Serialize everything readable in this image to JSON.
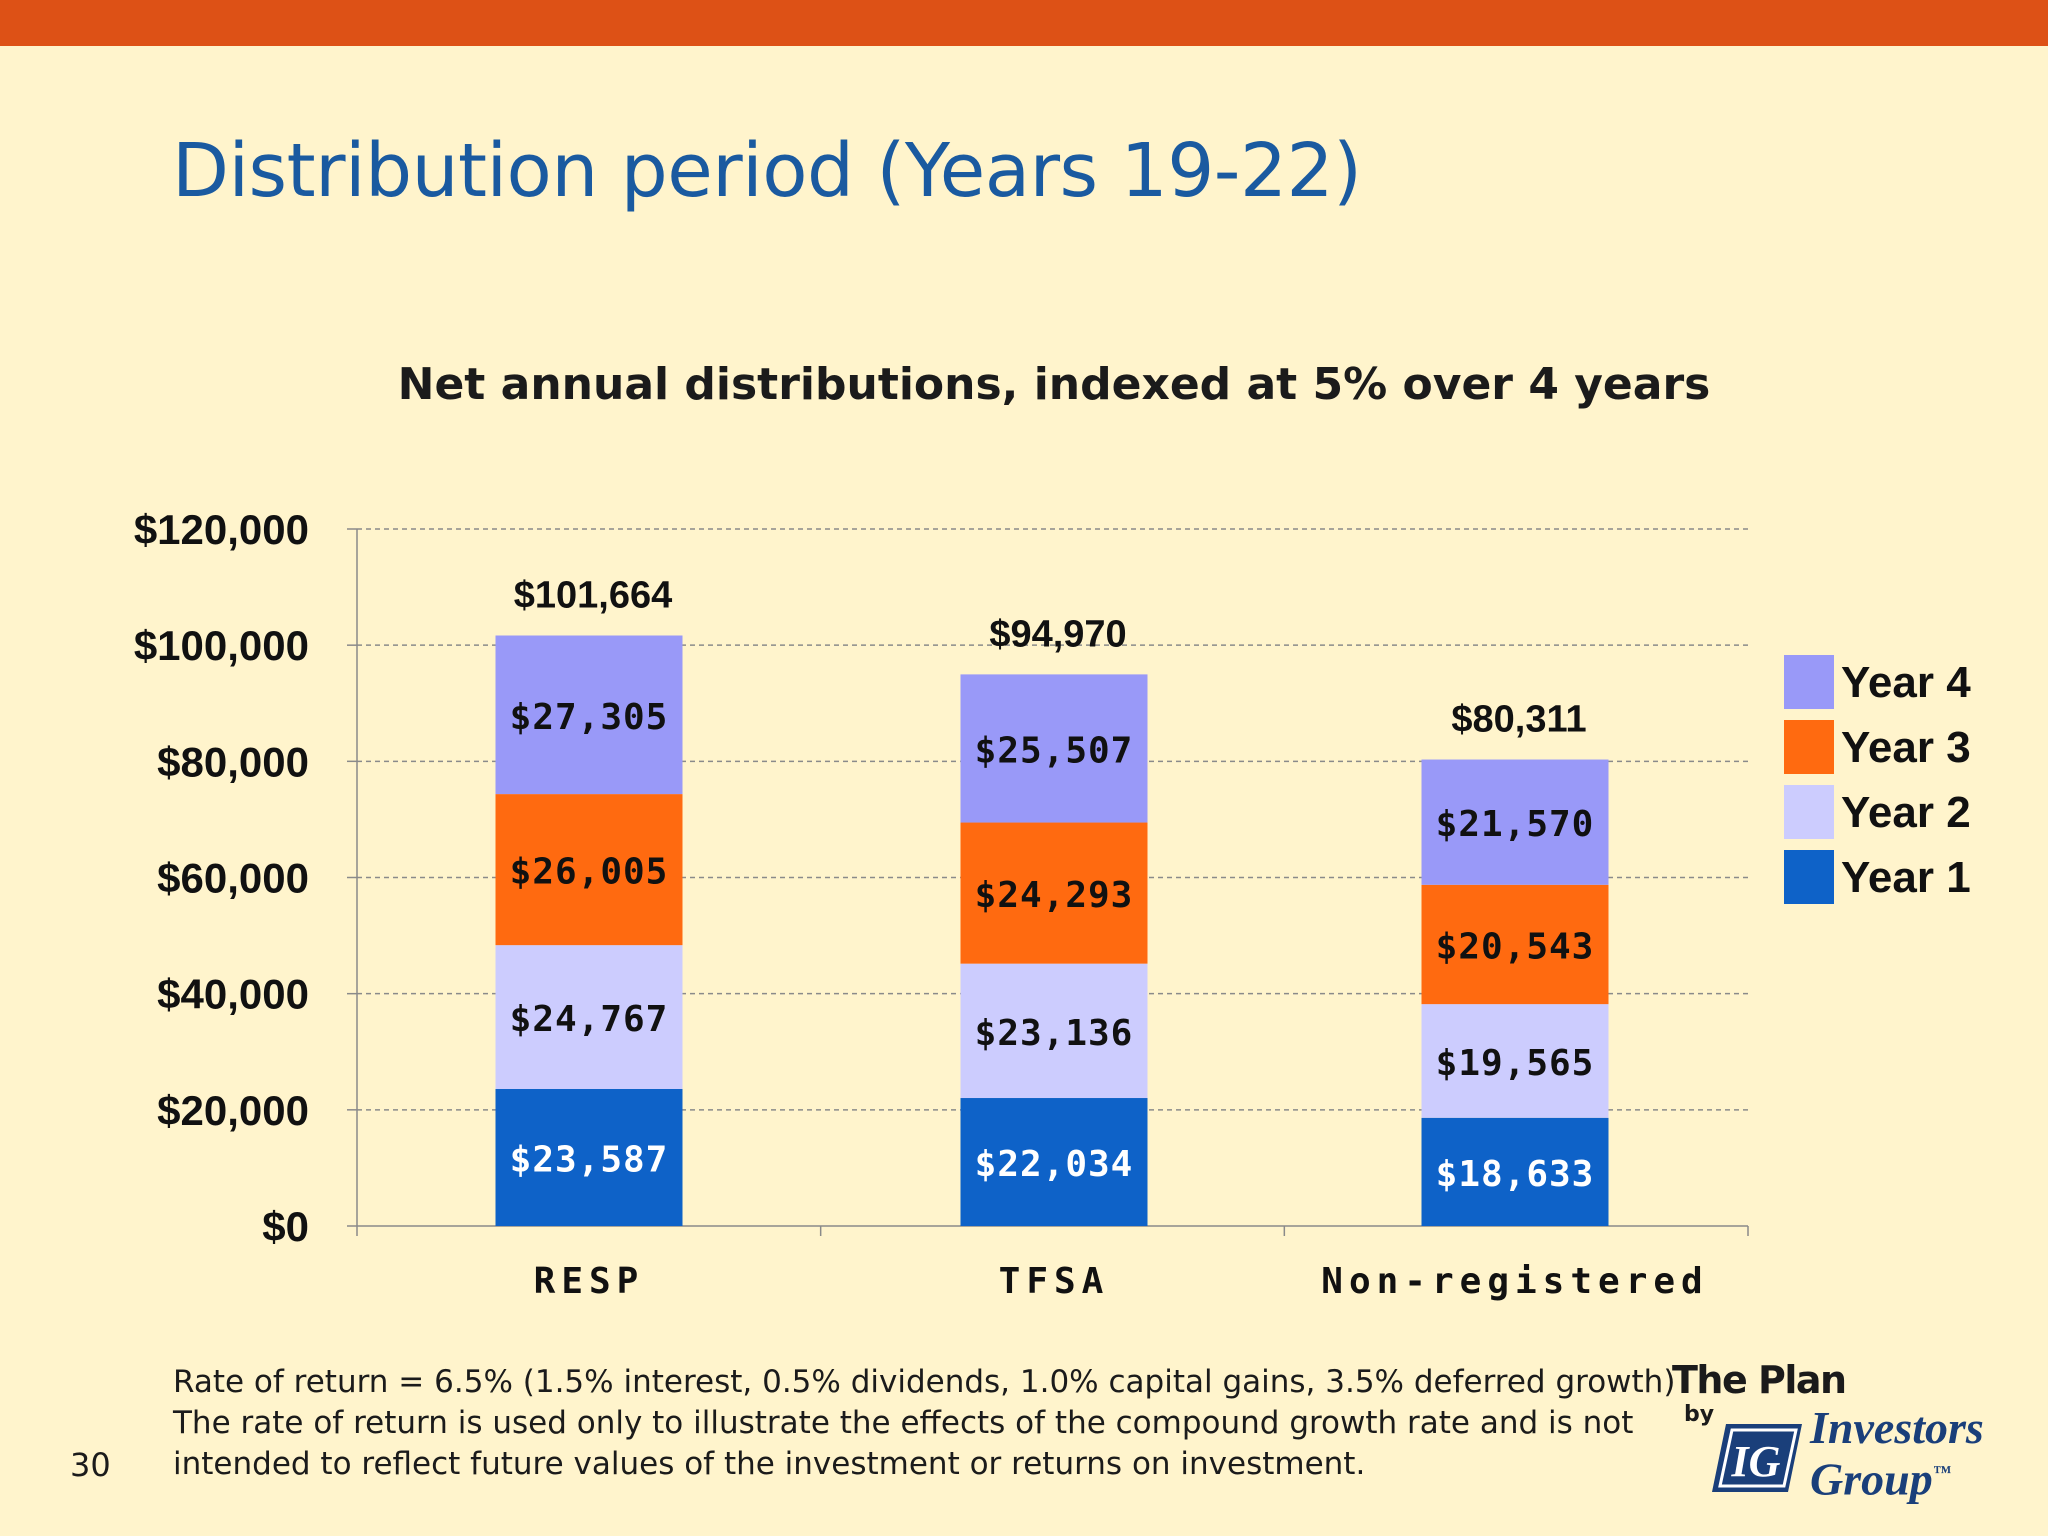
{
  "slide": {
    "title": "Distribution period (Years 19-22)",
    "page_number": "30",
    "footnote_lines": [
      "Rate of return = 6.5% (1.5% interest, 0.5% dividends, 1.0% capital gains, 3.5% deferred growth)",
      "The rate of return is used only to illustrate the effects of the compound growth rate and is not",
      "intended to reflect future values of  the investment or returns on investment."
    ],
    "logo": {
      "line1": "The Plan",
      "by": "by",
      "name_line1": "Investors",
      "name_line2": "Group",
      "trademark": "™",
      "mark": "IG"
    }
  },
  "colors": {
    "top_bar": "#dd5116",
    "background": "#fff4cc",
    "title": "#1a5aa0",
    "year1": "#0e62c8",
    "year2": "#ccccfe",
    "year3": "#ff6a10",
    "year4": "#9999f8"
  },
  "chart_data": {
    "type": "bar",
    "stacked": true,
    "title": "Net annual distributions, indexed at 5% over 4 years",
    "categories": [
      "RESP",
      "TFSA",
      "Non-registered"
    ],
    "series": [
      {
        "name": "Year 1",
        "values": [
          23587,
          22034,
          18633
        ],
        "labels": [
          "$23,587",
          "$22,034",
          "$18,633"
        ]
      },
      {
        "name": "Year 2",
        "values": [
          24767,
          23136,
          19565
        ],
        "labels": [
          "$24,767",
          "$23,136",
          "$19,565"
        ]
      },
      {
        "name": "Year 3",
        "values": [
          26005,
          24293,
          20543
        ],
        "labels": [
          "$26,005",
          "$24,293",
          "$20,543"
        ]
      },
      {
        "name": "Year 4",
        "values": [
          27305,
          25507,
          21570
        ],
        "labels": [
          "$27,305",
          "$25,507",
          "$21,570"
        ]
      }
    ],
    "totals": [
      101664,
      94970,
      80311
    ],
    "total_labels": [
      "$101,664",
      "$94,970",
      "$80,311"
    ],
    "ylim": [
      0,
      120000
    ],
    "yticks": [
      0,
      20000,
      40000,
      60000,
      80000,
      100000,
      120000
    ],
    "ytick_labels": [
      "$0",
      "$20,000",
      "$40,000",
      "$60,000",
      "$80,000",
      "$100,000",
      "$120,000"
    ],
    "legend_position": "right",
    "legend_order": [
      "Year 4",
      "Year 3",
      "Year 2",
      "Year 1"
    ],
    "grid": true,
    "xlabel": "",
    "ylabel": ""
  }
}
